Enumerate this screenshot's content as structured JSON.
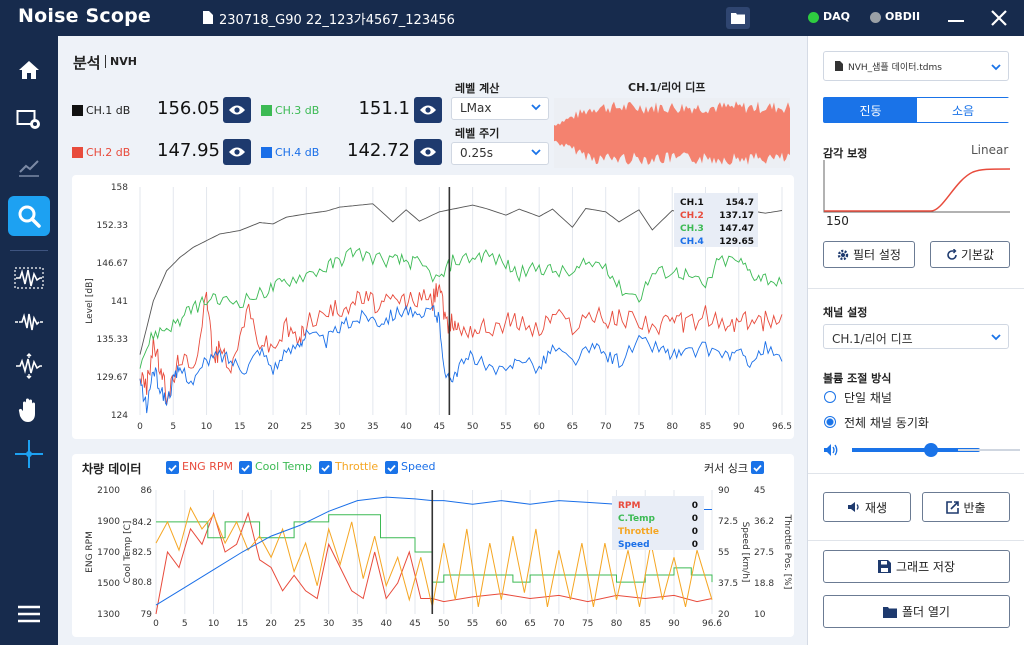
{
  "app": {
    "title": "Noise Scope",
    "file_name": "230718_G90 22_123가4567_123456"
  },
  "status": [
    {
      "label": "DAQ",
      "color": "#2ecc40"
    },
    {
      "label": "OBDII",
      "color": "#9aa0a6"
    }
  ],
  "icons": {
    "file": "file-icon",
    "folder": "folder-icon",
    "minimize": "minimize-icon",
    "close": "close-icon",
    "sidebar": [
      "home-icon",
      "settings-screen-icon",
      "trend-chart-icon",
      "search-icon",
      "waveform-icon",
      "waveform-split-icon",
      "waveform-zoom-icon",
      "hand-icon",
      "crosshair-icon",
      "menu-icon"
    ]
  },
  "analysis": {
    "title": "분석",
    "subtitle": "NVH",
    "channels": [
      {
        "label": "CH.1 dB",
        "value": "156.05",
        "color": "#111111"
      },
      {
        "label": "CH.2 dB",
        "value": "147.95",
        "color": "#e84b3c"
      },
      {
        "label": "CH.3 dB",
        "value": "151.1",
        "color": "#3cba54"
      },
      {
        "label": "CH.4 dB",
        "value": "142.72",
        "color": "#1a6fe8"
      }
    ],
    "level_calc_label": "레벨 계산",
    "level_calc_value": "LMax",
    "level_period_label": "레벨 주기",
    "level_period_value": "0.25s",
    "waveform_title": "CH.1/리어 디프"
  },
  "level_chart": {
    "chart_data": {
      "type": "line",
      "ylabel": "Level [dB]",
      "ylim": [
        124,
        158
      ],
      "xlim": [
        0,
        96.5
      ],
      "y_ticks": [
        "158",
        "152.33",
        "146.67",
        "141",
        "135.33",
        "129.67",
        "124"
      ],
      "x_ticks": [
        "0",
        "5",
        "10",
        "15",
        "20",
        "25",
        "30",
        "35",
        "40",
        "45",
        "50",
        "55",
        "60",
        "65",
        "70",
        "75",
        "80",
        "85",
        "90",
        "96.5"
      ],
      "cursor_x": 46.5,
      "legend": [
        {
          "name": "CH.1",
          "value": "154.7",
          "color": "#111111"
        },
        {
          "name": "CH.2",
          "value": "137.17",
          "color": "#e84b3c"
        },
        {
          "name": "CH.3",
          "value": "147.47",
          "color": "#3cba54"
        },
        {
          "name": "CH.4",
          "value": "129.65",
          "color": "#1a6fe8"
        }
      ],
      "series": [
        {
          "color": "#555555",
          "x": [
            0,
            2,
            4,
            6,
            8,
            10,
            12,
            15,
            18,
            20,
            22,
            25,
            28,
            30,
            32,
            35,
            38,
            40,
            42,
            45,
            47,
            50,
            52,
            55,
            57,
            60,
            62,
            65,
            67,
            70,
            72,
            75,
            77,
            80,
            82,
            85,
            87,
            90,
            92,
            94,
            96.5
          ],
          "y": [
            133,
            141,
            145.5,
            147.5,
            149,
            150,
            151,
            151.5,
            152.7,
            152.5,
            153.5,
            154,
            154.4,
            155,
            155.2,
            155.5,
            152.8,
            154.6,
            152.9,
            154.3,
            154.7,
            155.3,
            154.8,
            153.8,
            154.7,
            153.6,
            154.7,
            152,
            154.8,
            154.3,
            152.8,
            154.6,
            151.6,
            154.5,
            153.9,
            151.5,
            154.9,
            154.7,
            154.4,
            154.1,
            154.5
          ]
        },
        {
          "color": "#e84b3c",
          "x": [
            0,
            1,
            2,
            3,
            4,
            5,
            6,
            8,
            10,
            11,
            12,
            14,
            16,
            18,
            20,
            22,
            24,
            25,
            28,
            30,
            32,
            34,
            36,
            38,
            40,
            42,
            44,
            45,
            46,
            47,
            48,
            50,
            52,
            55,
            57,
            60,
            62,
            65,
            68,
            70,
            72,
            75,
            78,
            80,
            82,
            85,
            88,
            90,
            92,
            94,
            96.5
          ],
          "y": [
            130,
            128,
            135,
            131,
            127,
            129,
            133,
            130,
            143,
            132,
            134,
            131,
            140,
            135,
            134,
            137,
            135,
            138,
            139,
            140,
            141,
            141.5,
            140,
            141,
            141,
            141.5,
            141,
            144,
            137,
            138,
            137,
            137,
            137,
            138,
            138,
            136.5,
            139,
            137.5,
            139,
            138,
            138.5,
            138.5,
            137,
            138,
            137.5,
            139,
            137,
            138,
            138,
            138,
            139
          ]
        },
        {
          "color": "#3cba54",
          "x": [
            0,
            2,
            4,
            6,
            8,
            10,
            12,
            15,
            18,
            20,
            22,
            25,
            28,
            30,
            32,
            35,
            38,
            40,
            42,
            45,
            47,
            50,
            52,
            55,
            57,
            60,
            62,
            65,
            67,
            70,
            72,
            75,
            77,
            80,
            82,
            85,
            87,
            90,
            92,
            94,
            96.5
          ],
          "y": [
            132,
            136,
            137,
            138,
            140,
            141,
            141,
            141,
            142,
            143,
            144,
            145,
            146,
            147,
            148.5,
            147.5,
            147,
            147,
            146.5,
            144,
            147,
            147.5,
            148,
            146.5,
            145,
            146,
            145.5,
            145,
            146.5,
            146.5,
            143,
            141.5,
            145,
            145.5,
            145,
            143,
            147,
            147,
            145,
            144.5,
            143.5
          ]
        },
        {
          "color": "#1a6fe8",
          "x": [
            0,
            1,
            2,
            3,
            4,
            5,
            6,
            8,
            10,
            12,
            14,
            16,
            18,
            20,
            22,
            24,
            25,
            28,
            30,
            32,
            34,
            36,
            38,
            40,
            42,
            44,
            45,
            46,
            47,
            48,
            50,
            52,
            55,
            57,
            60,
            62,
            65,
            68,
            70,
            72,
            75,
            78,
            80,
            82,
            85,
            88,
            90,
            92,
            94,
            96.5
          ],
          "y": [
            129,
            125,
            131,
            128,
            126,
            129,
            131,
            129,
            132,
            133,
            132,
            131,
            134,
            131,
            133,
            135,
            136,
            135,
            137,
            138,
            139,
            138,
            139,
            140,
            138,
            140,
            138,
            129,
            130,
            131,
            133,
            131,
            130,
            133,
            131,
            134,
            132,
            134,
            133,
            132,
            135,
            134,
            133,
            133,
            134,
            133,
            133,
            132,
            134,
            132
          ]
        }
      ]
    }
  },
  "vehicle": {
    "title": "차량 데이터",
    "checks": [
      {
        "label": "ENG RPM",
        "color": "#e84b3c"
      },
      {
        "label": "Cool Temp",
        "color": "#3cba54"
      },
      {
        "label": "Throttle",
        "color": "#f5a623"
      },
      {
        "label": "Speed",
        "color": "#1a6fe8"
      }
    ],
    "cursor_sync_label": "커서 싱크",
    "chart_data": {
      "type": "line",
      "xlim": [
        0,
        96.6
      ],
      "x_ticks": [
        "0",
        "5",
        "10",
        "15",
        "20",
        "25",
        "30",
        "35",
        "40",
        "45",
        "50",
        "55",
        "60",
        "65",
        "70",
        "75",
        "80",
        "85",
        "90",
        "96.6"
      ],
      "axes": [
        {
          "label": "ENG RPM",
          "ticks": [
            "2100",
            "1900",
            "1700",
            "1500",
            "1300"
          ],
          "range": [
            1300,
            2100
          ]
        },
        {
          "label": "Cool Temp [C]",
          "ticks": [
            "86",
            "84.2",
            "82.5",
            "80.8",
            "79"
          ],
          "range": [
            79,
            86
          ]
        },
        {
          "label": "Speed [km/h]",
          "ticks": [
            "90",
            "72.5",
            "55",
            "37.5",
            "20"
          ],
          "range": [
            20,
            90
          ]
        },
        {
          "label": "Throttle Pos. [%]",
          "ticks": [
            "45",
            "36.2",
            "27.5",
            "18.8",
            "10"
          ],
          "range": [
            10,
            45
          ]
        }
      ],
      "cursor_x": 48,
      "legend": [
        {
          "name": "RPM",
          "value": "0",
          "color": "#e84b3c"
        },
        {
          "name": "C.Temp",
          "value": "0",
          "color": "#3cba54"
        },
        {
          "name": "Throttle",
          "value": "0",
          "color": "#f5a623"
        },
        {
          "name": "Speed",
          "value": "0",
          "color": "#1a6fe8"
        }
      ],
      "series": [
        {
          "name": "ENG RPM",
          "axis": 0,
          "color": "#e84b3c",
          "x": [
            0,
            2,
            4,
            6,
            8,
            10,
            12,
            14,
            16,
            18,
            20,
            22,
            24,
            26,
            28,
            30,
            32,
            34,
            36,
            38,
            40,
            42,
            44,
            46,
            48,
            50,
            55,
            60,
            65,
            70,
            75,
            80,
            85,
            90,
            92,
            94,
            96.6
          ],
          "y": [
            1300,
            1700,
            1600,
            1850,
            1750,
            1950,
            1700,
            1750,
            1950,
            1650,
            1600,
            1450,
            1550,
            1450,
            1400,
            1750,
            1600,
            1450,
            1400,
            1700,
            1400,
            1500,
            1700,
            1400,
            1400,
            1380,
            1410,
            1430,
            1400,
            1420,
            1380,
            1420,
            1400,
            1420,
            1400,
            1380,
            1400
          ]
        },
        {
          "name": "Cool Temp",
          "axis": 1,
          "color": "#3cba54",
          "x": [
            0,
            3,
            6,
            9,
            12,
            15,
            18,
            21,
            24,
            27,
            30,
            33,
            36,
            39,
            42,
            45,
            47,
            48,
            50,
            55,
            60,
            62,
            65,
            70,
            75,
            78,
            80,
            85,
            88,
            90,
            93,
            96.6
          ],
          "y": [
            84.2,
            84.2,
            84.2,
            83.3,
            84.2,
            84.2,
            83.3,
            83.3,
            84.2,
            84.2,
            84.6,
            84.6,
            84.6,
            83.3,
            83.3,
            82.5,
            82.5,
            80.8,
            81.2,
            81.2,
            81.2,
            80.8,
            81.2,
            81.2,
            81.2,
            81.2,
            80.8,
            81.2,
            81.2,
            81.6,
            81.2,
            80.8
          ]
        },
        {
          "name": "Throttle",
          "axis": 3,
          "color": "#f5a623",
          "x": [
            0,
            2,
            4,
            6,
            8,
            10,
            12,
            14,
            16,
            18,
            20,
            22,
            24,
            26,
            28,
            30,
            32,
            34,
            36,
            38,
            40,
            42,
            44,
            46,
            48,
            50,
            52,
            54,
            56,
            58,
            60,
            62,
            64,
            66,
            68,
            70,
            72,
            74,
            76,
            78,
            80,
            82,
            84,
            86,
            88,
            90,
            92,
            94,
            96.6
          ],
          "y": [
            30,
            36,
            28,
            40,
            34,
            38,
            30,
            36,
            28,
            32,
            26,
            34,
            22,
            30,
            18,
            34,
            24,
            36,
            20,
            32,
            18,
            26,
            14,
            26,
            12,
            30,
            14,
            34,
            12,
            30,
            14,
            32,
            16,
            34,
            12,
            28,
            14,
            30,
            12,
            30,
            14,
            28,
            12,
            30,
            14,
            26,
            12,
            28,
            14
          ]
        },
        {
          "name": "Speed",
          "axis": 2,
          "color": "#1a6fe8",
          "x": [
            0,
            5,
            10,
            15,
            20,
            25,
            30,
            35,
            40,
            45,
            48,
            50,
            55,
            60,
            65,
            70,
            75,
            80,
            85,
            90,
            93,
            96.6
          ],
          "y": [
            25,
            35,
            45,
            55,
            64,
            70,
            78,
            84,
            86,
            85,
            84,
            84,
            82,
            84,
            82,
            84,
            83,
            82,
            82,
            80,
            79,
            79
          ]
        }
      ]
    }
  },
  "right_panel": {
    "file_select": "NVH_샘플 데이터.tdms",
    "tabs": [
      {
        "label": "진동",
        "active": true
      },
      {
        "label": "소음",
        "active": false
      }
    ],
    "weighting_label": "감각 보정",
    "weighting_mode": "Linear",
    "weighting_value": "150",
    "filter_btn": "필터 설정",
    "default_btn": "기본값",
    "channel_setting_label": "채널 설정",
    "channel_select": "CH.1/리어 디프",
    "volume_mode_label": "볼륨 조절 방식",
    "radio_single": "단일 채널",
    "radio_all": "전체 채널 동기화",
    "volume_level": 0.62,
    "play_btn": "재생",
    "export_btn": "반출",
    "save_btn": "그래프 저장",
    "folder_btn": "폴더 열기"
  }
}
